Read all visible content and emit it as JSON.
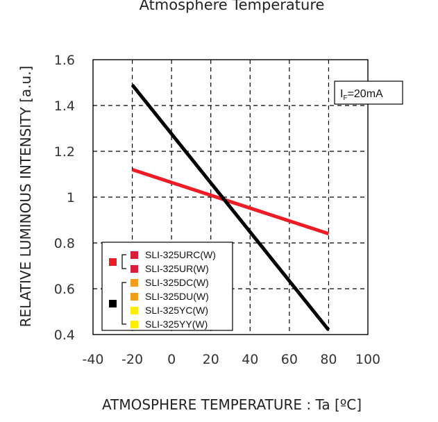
{
  "chart_data": {
    "type": "line",
    "title": "Atmosphere Temperature",
    "xlabel": "ATMOSPHERE TEMPERATURE : Ta [ºC]",
    "ylabel": "RELATIVE LUMINOUS INTENSITY [a.u.]",
    "xlim": [
      -40,
      100
    ],
    "ylim": [
      0.4,
      1.6
    ],
    "x_ticks": [
      "-40",
      "-20",
      "0",
      "20",
      "40",
      "60",
      "80",
      "100"
    ],
    "y_ticks": [
      "0.4",
      "0.6",
      "0.8",
      "1",
      "1.2",
      "1.4",
      "1.6"
    ],
    "grid": true,
    "condition": {
      "symbol": "I",
      "subscript": "F",
      "value": "=20mA"
    },
    "series": [
      {
        "color": "#ee1c25",
        "x": [
          -20,
          80
        ],
        "y": [
          1.12,
          0.84
        ]
      },
      {
        "color": "#000000",
        "x": [
          -20,
          80
        ],
        "y": [
          1.49,
          0.42
        ]
      }
    ],
    "legend": {
      "placement": "bottom-left",
      "groups": [
        {
          "marker_color": "#ee1c25",
          "items": [
            {
              "label": "SLI-325URC(W)",
              "color": "#dd1c3c"
            },
            {
              "label": "SLI-325UR(W)",
              "color": "#dd1c3c"
            }
          ]
        },
        {
          "marker_color": "#000000",
          "items": [
            {
              "label": "SLI-325DC(W)",
              "color": "#f39c18"
            },
            {
              "label": "SLI-325DU(W)",
              "color": "#f39c18"
            },
            {
              "label": "SLI-325YC(W)",
              "color": "#ffee00"
            },
            {
              "label": "SLI-325YY(W)",
              "color": "#ffee00"
            }
          ]
        }
      ]
    }
  }
}
